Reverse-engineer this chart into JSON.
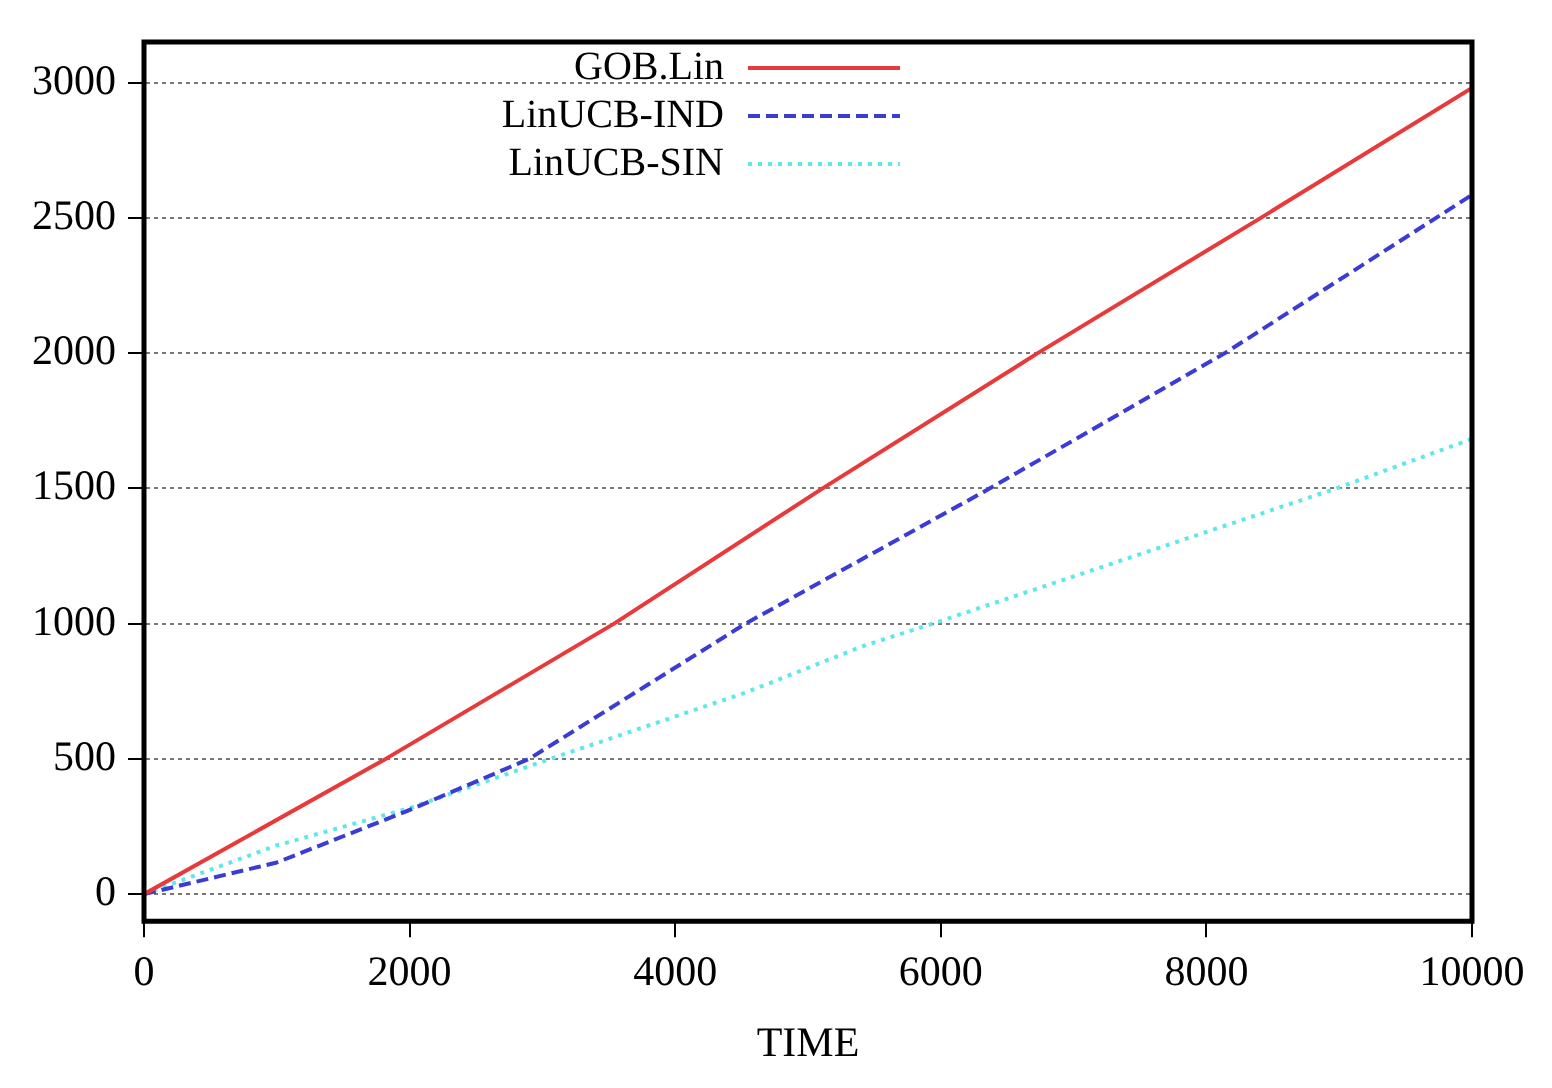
{
  "chart_data": {
    "type": "line",
    "xlabel": "TIME",
    "xlim": [
      0,
      10000
    ],
    "xticks": [
      0,
      2000,
      4000,
      6000,
      8000,
      10000
    ],
    "ylim": [
      -100,
      3150
    ],
    "yticks": [
      0,
      500,
      1000,
      1500,
      2000,
      2500,
      3000
    ],
    "grid": "y",
    "legend": "top left",
    "marker": "none",
    "series": [
      {
        "name": "GOB.Lin",
        "color": "#e83a3a",
        "line_style": "solid",
        "x": [
          0,
          1820,
          3540,
          5110,
          6730,
          8410,
          10000
        ],
        "values": [
          0,
          500,
          1000,
          1500,
          2000,
          2500,
          2980
        ]
      },
      {
        "name": "LinUCB-IND",
        "color": "#3b3bd6",
        "line_style": "dashed",
        "x": [
          0,
          1000,
          1970,
          2900,
          4530,
          6370,
          8140,
          10000
        ],
        "values": [
          0,
          117,
          305,
          500,
          1000,
          1500,
          2000,
          2585
        ]
      },
      {
        "name": "LinUCB-SIN",
        "color": "#5ee8e8",
        "line_style": "dotted",
        "x": [
          0,
          1000,
          2000,
          3000,
          4530,
          5420,
          5940,
          8980,
          10000
        ],
        "values": [
          0,
          180,
          318,
          490,
          745,
          918,
          1000,
          1500,
          1683
        ]
      }
    ]
  }
}
